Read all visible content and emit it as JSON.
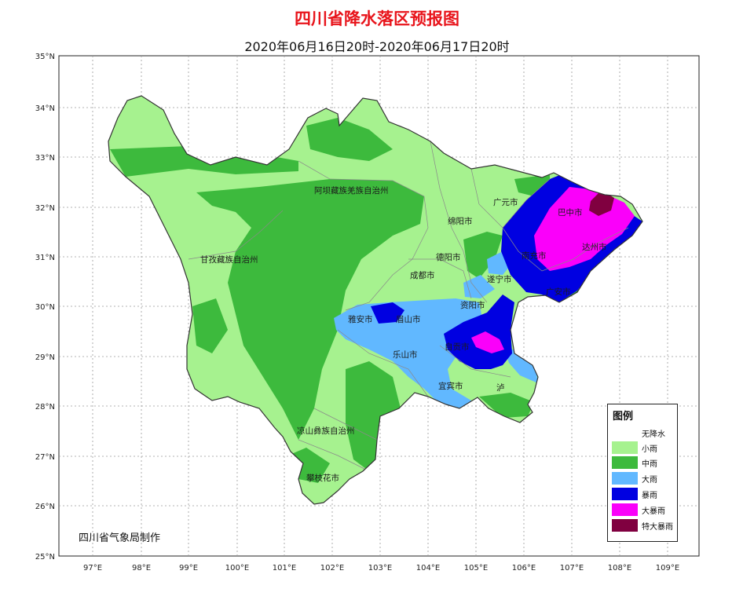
{
  "title": "四川省降水落区预报图",
  "subtitle": "2020年06月16日20时-2020年06月17日20时",
  "credit": "四川省气象局制作",
  "axes": {
    "lat_labels": [
      "35°N",
      "34°N",
      "33°N",
      "32°N",
      "31°N",
      "30°N",
      "29°N",
      "28°N",
      "27°N",
      "26°N",
      "25°N"
    ],
    "lon_labels": [
      "97°E",
      "98°E",
      "99°E",
      "100°E",
      "101°E",
      "102°E",
      "103°E",
      "104°E",
      "105°E",
      "106°E",
      "107°E",
      "108°E",
      "109°E"
    ]
  },
  "regions": {
    "aba": "阿坝藏族羌族自治州",
    "ganzi": "甘孜藏族自治州",
    "liangshan": "凉山彝族自治州",
    "panzhihua": "攀枝花市",
    "chengdu": "成都市",
    "deyang": "德阳市",
    "mianyang": "绵阳市",
    "guangyuan": "广元市",
    "bazhong": "巴中市",
    "dazhou": "达州市",
    "nanchong": "南充市",
    "guangan": "广安市",
    "suining": "遂宁市",
    "ziyang": "资阳市",
    "yaan": "雅安市",
    "meishan": "眉山市",
    "leshan": "乐山市",
    "zigong": "自贡市",
    "yibin": "宜宾市",
    "luzhou": "泸"
  },
  "legend": {
    "title": "图例",
    "items": [
      {
        "label": "无降水",
        "color": "#ffffff"
      },
      {
        "label": "小雨",
        "color": "#a6f28f"
      },
      {
        "label": "中雨",
        "color": "#3dba3d"
      },
      {
        "label": "大雨",
        "color": "#61b8ff"
      },
      {
        "label": "暴雨",
        "color": "#0000e1"
      },
      {
        "label": "大暴雨",
        "color": "#fa00fa"
      },
      {
        "label": "特大暴雨",
        "color": "#800040"
      }
    ]
  }
}
